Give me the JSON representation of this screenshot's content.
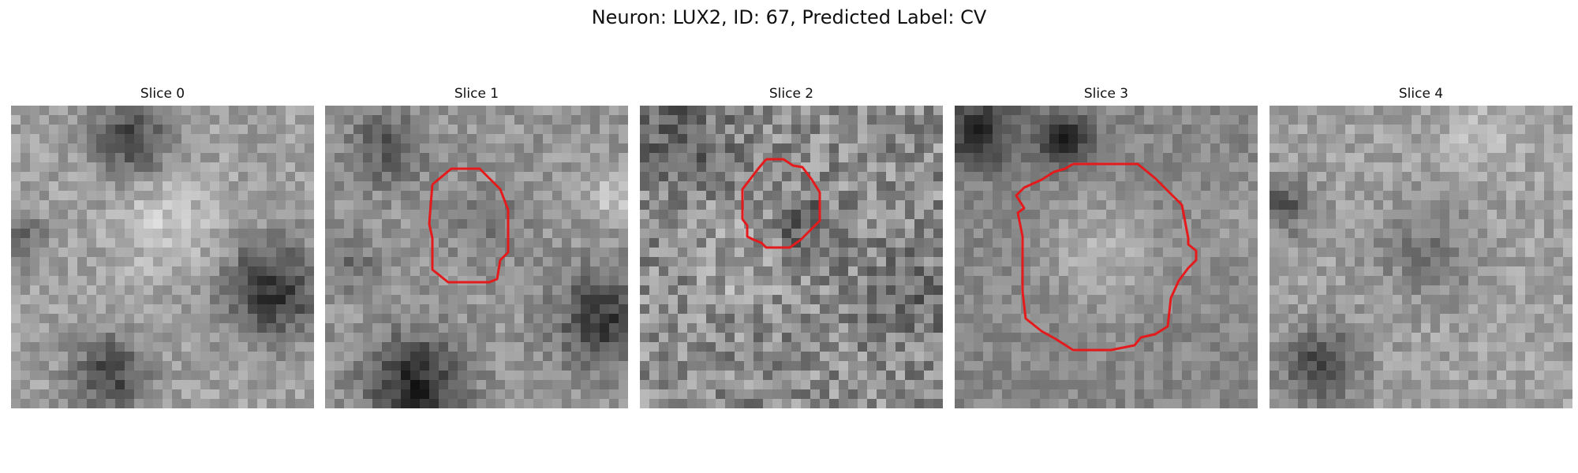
{
  "figure": {
    "title": "Neuron: LUX2, ID: 67, Predicted Label: CV",
    "contour_color": "#e41a1c"
  },
  "panels": [
    {
      "label": "Slice 0",
      "has_contour": false
    },
    {
      "label": "Slice 1",
      "has_contour": true
    },
    {
      "label": "Slice 2",
      "has_contour": true
    },
    {
      "label": "Slice 3",
      "has_contour": true
    },
    {
      "label": "Slice 4",
      "has_contour": false
    }
  ]
}
